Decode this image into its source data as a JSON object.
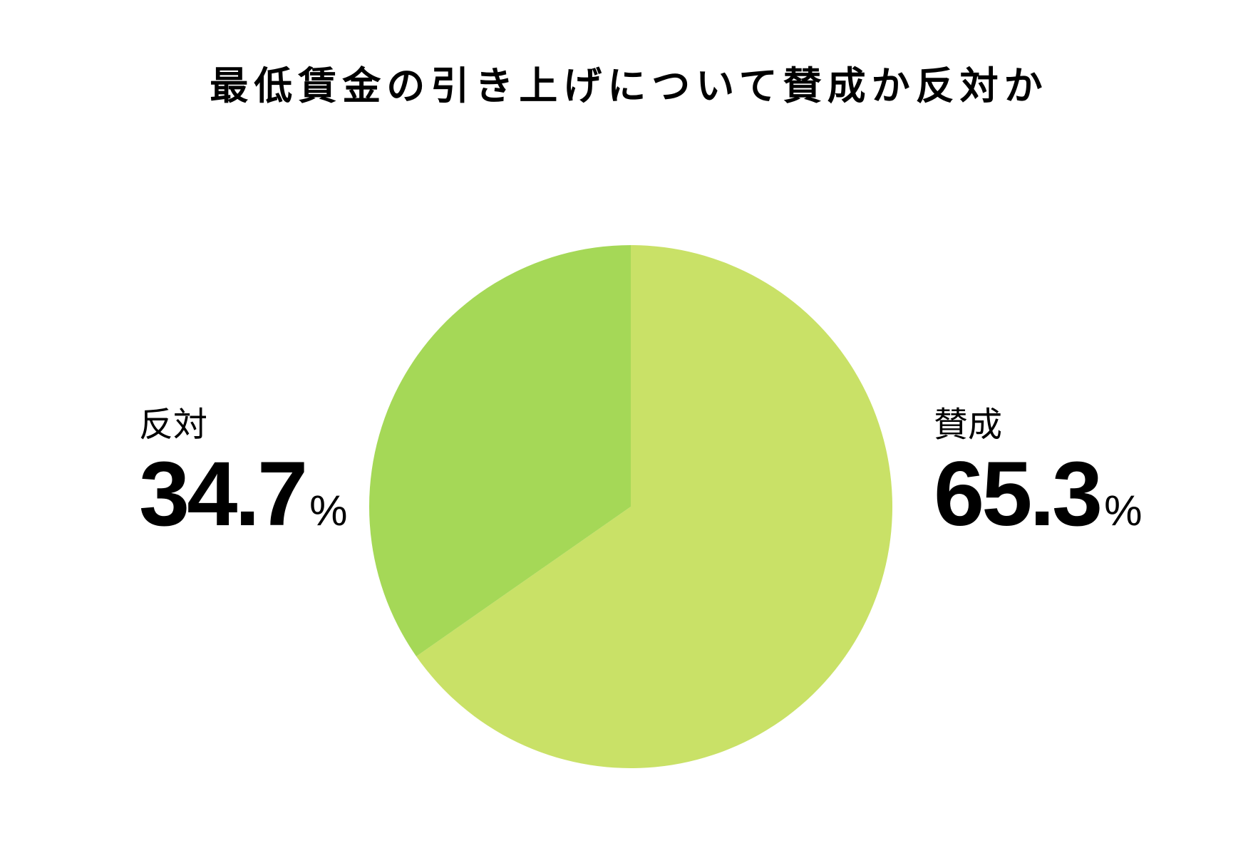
{
  "title": "最低賃金の引き上げについて賛成か反対か",
  "colors": {
    "favor": "#c9e167",
    "oppose": "#a5d857",
    "background": "#ffffff",
    "text": "#000000"
  },
  "labels": {
    "oppose": {
      "name": "反対",
      "value": "34.7",
      "unit": "%"
    },
    "favor": {
      "name": "賛成",
      "value": "65.3",
      "unit": "%"
    }
  },
  "chart_data": {
    "type": "pie",
    "title": "最低賃金の引き上げについて賛成か反対か",
    "categories": [
      "賛成",
      "反対"
    ],
    "values": [
      65.3,
      34.7
    ],
    "unit": "%",
    "colors": [
      "#c9e167",
      "#a5d857"
    ],
    "start_angle": "12 o'clock, clockwise",
    "legend": "none (direct labels left and right of pie)"
  }
}
